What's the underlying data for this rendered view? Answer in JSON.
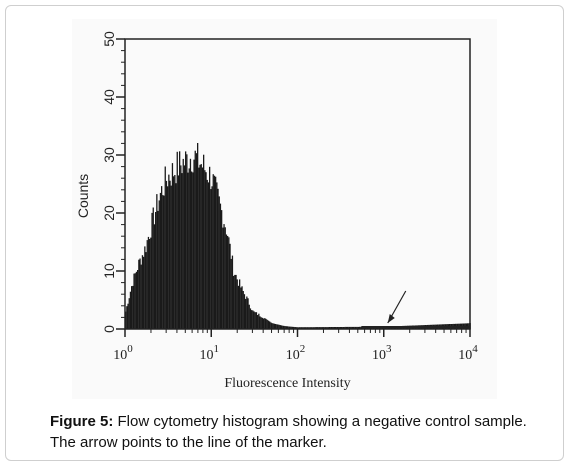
{
  "chart_data": {
    "type": "histogram",
    "xlabel": "Fluorescence Intensity",
    "ylabel": "Counts",
    "x_scale": "log",
    "xlim": [
      1,
      10000
    ],
    "ylim": [
      0,
      50
    ],
    "x_ticks": [
      {
        "value": 1,
        "base": "10",
        "exp": "0"
      },
      {
        "value": 10,
        "base": "10",
        "exp": "1"
      },
      {
        "value": 100,
        "base": "10",
        "exp": "2"
      },
      {
        "value": 1000,
        "base": "10",
        "exp": "3"
      },
      {
        "value": 10000,
        "base": "10",
        "exp": "4"
      }
    ],
    "y_ticks": [
      "0",
      "10",
      "20",
      "30",
      "40",
      "50"
    ],
    "grid": false,
    "distribution_profile": {
      "x": [
        1.0,
        1.2,
        1.4,
        1.7,
        2.0,
        2.5,
        3.0,
        3.5,
        4.0,
        5.0,
        6.0,
        7.0,
        8.0,
        10.0,
        12.0,
        15.0,
        18.0,
        22.0,
        26.0,
        30.0,
        40.0,
        50.0,
        70.0,
        100.0,
        1000.0,
        10000.0
      ],
      "counts": [
        3,
        8,
        11,
        14,
        18,
        23,
        26,
        27,
        28,
        29,
        30,
        29,
        28,
        26,
        22,
        17,
        10,
        7,
        5,
        3,
        2,
        1,
        0.5,
        0.3,
        0.4,
        1
      ]
    },
    "annotation": {
      "type": "arrow",
      "target_x": 1000,
      "meaning": "line of the marker"
    },
    "colors": {
      "bars": "#1a1a1a",
      "axes": "#222222",
      "background": "#fafafa"
    }
  },
  "caption": {
    "label": "Figure 5:",
    "text": " Flow cytometry histogram showing a negative control sample. The arrow points to the line of the marker."
  }
}
